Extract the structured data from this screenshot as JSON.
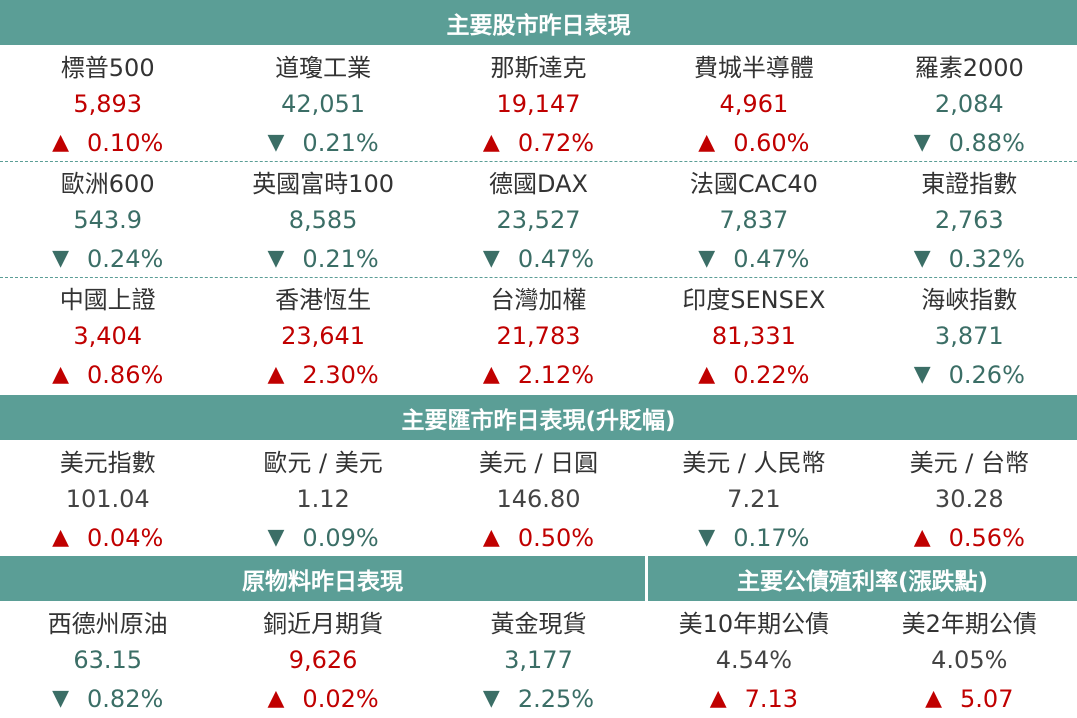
{
  "sections": {
    "stocks_title": "主要股市昨日表現",
    "fx_title": "主要匯市昨日表現(升貶幅)",
    "commodities_title": "原物料昨日表現",
    "bonds_title": "主要公債殖利率(漲跌點)"
  },
  "stocks": [
    {
      "name": "標普500",
      "value": "5,893",
      "change": "0.10%",
      "dir": "up"
    },
    {
      "name": "道瓊工業",
      "value": "42,051",
      "change": "0.21%",
      "dir": "down"
    },
    {
      "name": "那斯達克",
      "value": "19,147",
      "change": "0.72%",
      "dir": "up"
    },
    {
      "name": "費城半導體",
      "value": "4,961",
      "change": "0.60%",
      "dir": "up"
    },
    {
      "name": "羅素2000",
      "value": "2,084",
      "change": "0.88%",
      "dir": "down"
    },
    {
      "name": "歐洲600",
      "value": "543.9",
      "change": "0.24%",
      "dir": "down"
    },
    {
      "name": "英國富時100",
      "value": "8,585",
      "change": "0.21%",
      "dir": "down"
    },
    {
      "name": "德國DAX",
      "value": "23,527",
      "change": "0.47%",
      "dir": "down"
    },
    {
      "name": "法國CAC40",
      "value": "7,837",
      "change": "0.47%",
      "dir": "down"
    },
    {
      "name": "東證指數",
      "value": "2,763",
      "change": "0.32%",
      "dir": "down"
    },
    {
      "name": "中國上證",
      "value": "3,404",
      "change": "0.86%",
      "dir": "up"
    },
    {
      "name": "香港恆生",
      "value": "23,641",
      "change": "2.30%",
      "dir": "up"
    },
    {
      "name": "台灣加權",
      "value": "21,783",
      "change": "2.12%",
      "dir": "up"
    },
    {
      "name": "印度SENSEX",
      "value": "81,331",
      "change": "0.22%",
      "dir": "up"
    },
    {
      "name": "海峽指數",
      "value": "3,871",
      "change": "0.26%",
      "dir": "down"
    }
  ],
  "fx": [
    {
      "name": "美元指數",
      "value": "101.04",
      "change": "0.04%",
      "dir": "up"
    },
    {
      "name": "歐元 / 美元",
      "value": "1.12",
      "change": "0.09%",
      "dir": "down"
    },
    {
      "name": "美元 / 日圓",
      "value": "146.80",
      "change": "0.50%",
      "dir": "up"
    },
    {
      "name": "美元 / 人民幣",
      "value": "7.21",
      "change": "0.17%",
      "dir": "down"
    },
    {
      "name": "美元 / 台幣",
      "value": "30.28",
      "change": "0.56%",
      "dir": "up"
    }
  ],
  "commodities": [
    {
      "name": "西德州原油",
      "value": "63.15",
      "change": "0.82%",
      "dir": "down"
    },
    {
      "name": "銅近月期貨",
      "value": "9,626",
      "change": "0.02%",
      "dir": "up"
    },
    {
      "name": "黃金現貨",
      "value": "3,177",
      "change": "2.25%",
      "dir": "down"
    },
    {
      "name": "美10年期公債",
      "value": "4.54%",
      "change": "7.13",
      "dir": "up"
    },
    {
      "name": "美2年期公債",
      "value": "4.05%",
      "change": "5.07",
      "dir": "up"
    }
  ],
  "colors": {
    "header_bg": "#5b9e96",
    "up": "#c00000",
    "down": "#3b6e66"
  },
  "arrows": {
    "up": "▲",
    "down": "▼"
  }
}
